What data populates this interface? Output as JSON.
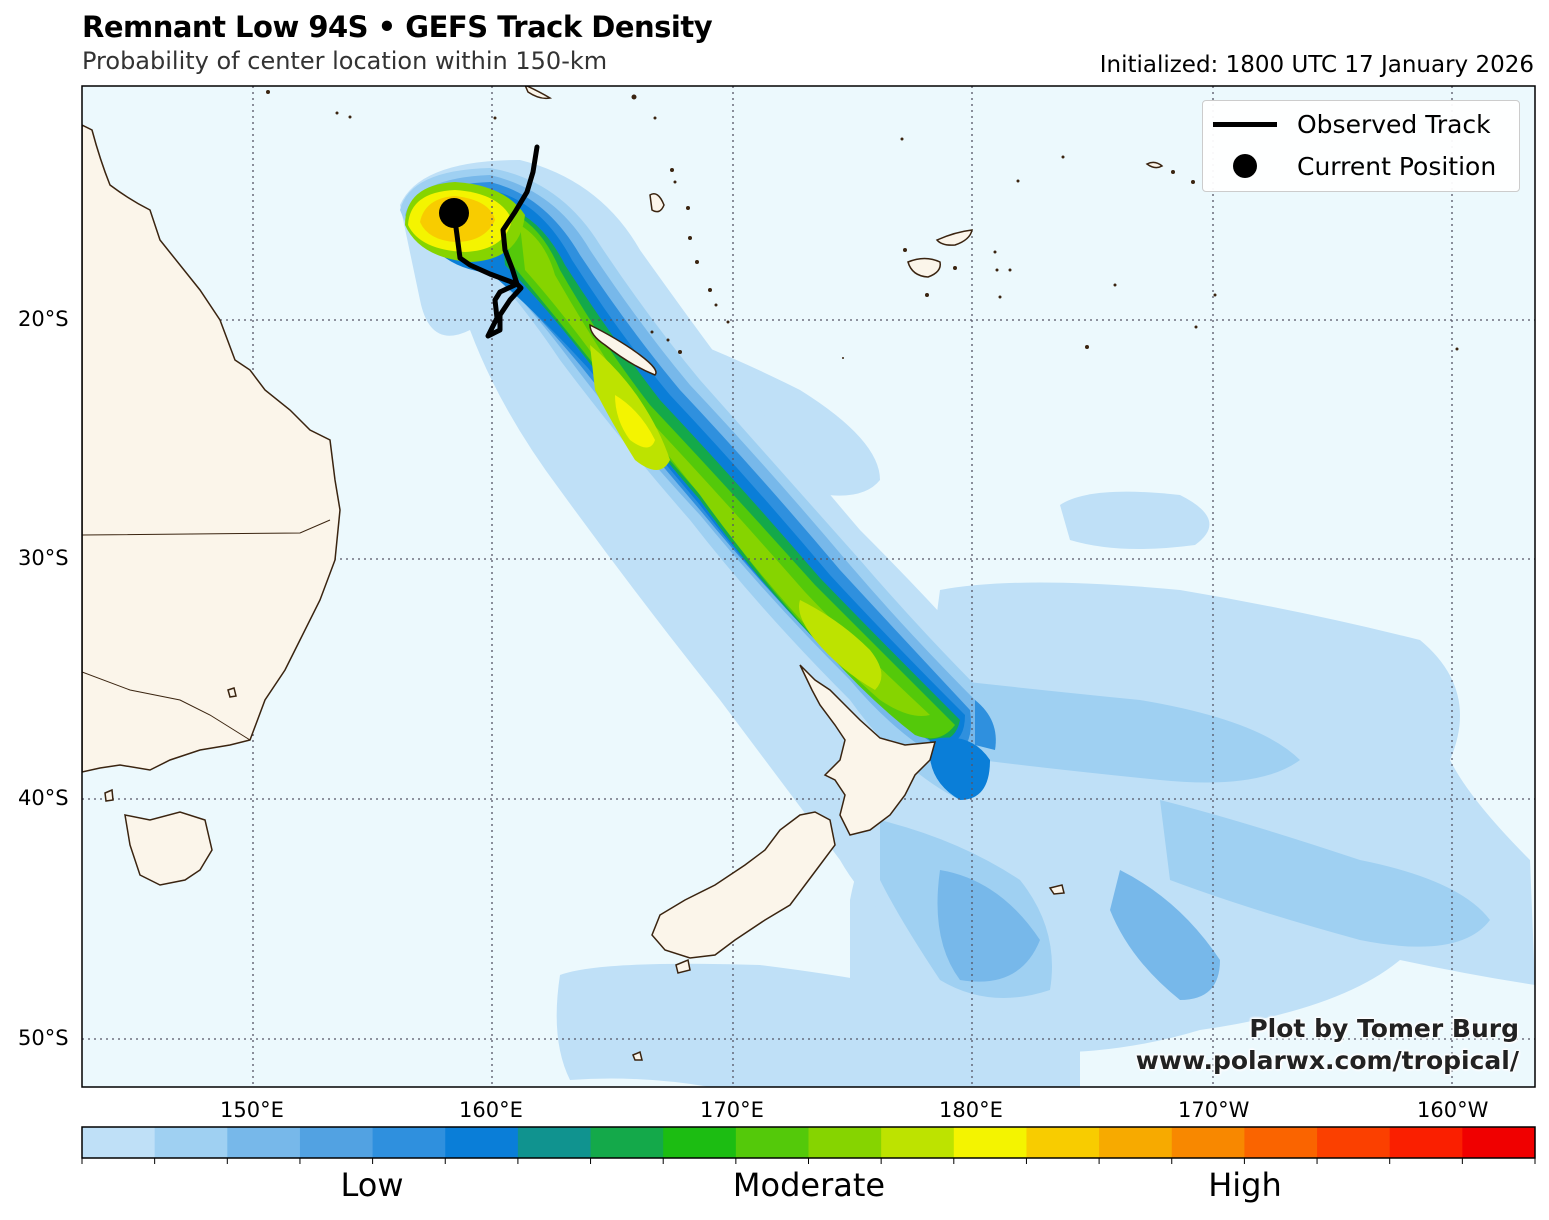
{
  "header": {
    "title": "Remnant Low 94S • GEFS Track Density",
    "subtitle": "Probability of center location within 150-km",
    "initialized": "Initialized: 1800 UTC 17 January 2026"
  },
  "legend": {
    "observed_track": "Observed Track",
    "current_position": "Current Position"
  },
  "credit": {
    "line1": "Plot by Tomer Burg",
    "line2": "www.polarwx.com/tropical/"
  },
  "axes": {
    "lat_labels": [
      "20°S",
      "30°S",
      "40°S",
      "50°S"
    ],
    "lon_labels": [
      "150°E",
      "160°E",
      "170°E",
      "180°E",
      "170°W",
      "160°W"
    ]
  },
  "colorbar": {
    "labels": [
      "Low",
      "Moderate",
      "High"
    ],
    "colors": [
      "#bfe0f7",
      "#9fd0f2",
      "#77b8ea",
      "#52a2e2",
      "#2f90de",
      "#0a7ed8",
      "#10938f",
      "#14a94a",
      "#1cbd12",
      "#54c90a",
      "#86d400",
      "#bde300",
      "#f4f400",
      "#f8cc00",
      "#f7aa00",
      "#f88800",
      "#fa6400",
      "#fb4000",
      "#fa1f00",
      "#f00000"
    ]
  },
  "map": {
    "ocean_color": "#ecf9fd",
    "land_color": "#fbf5ea",
    "coast_color": "#3a2410"
  }
}
